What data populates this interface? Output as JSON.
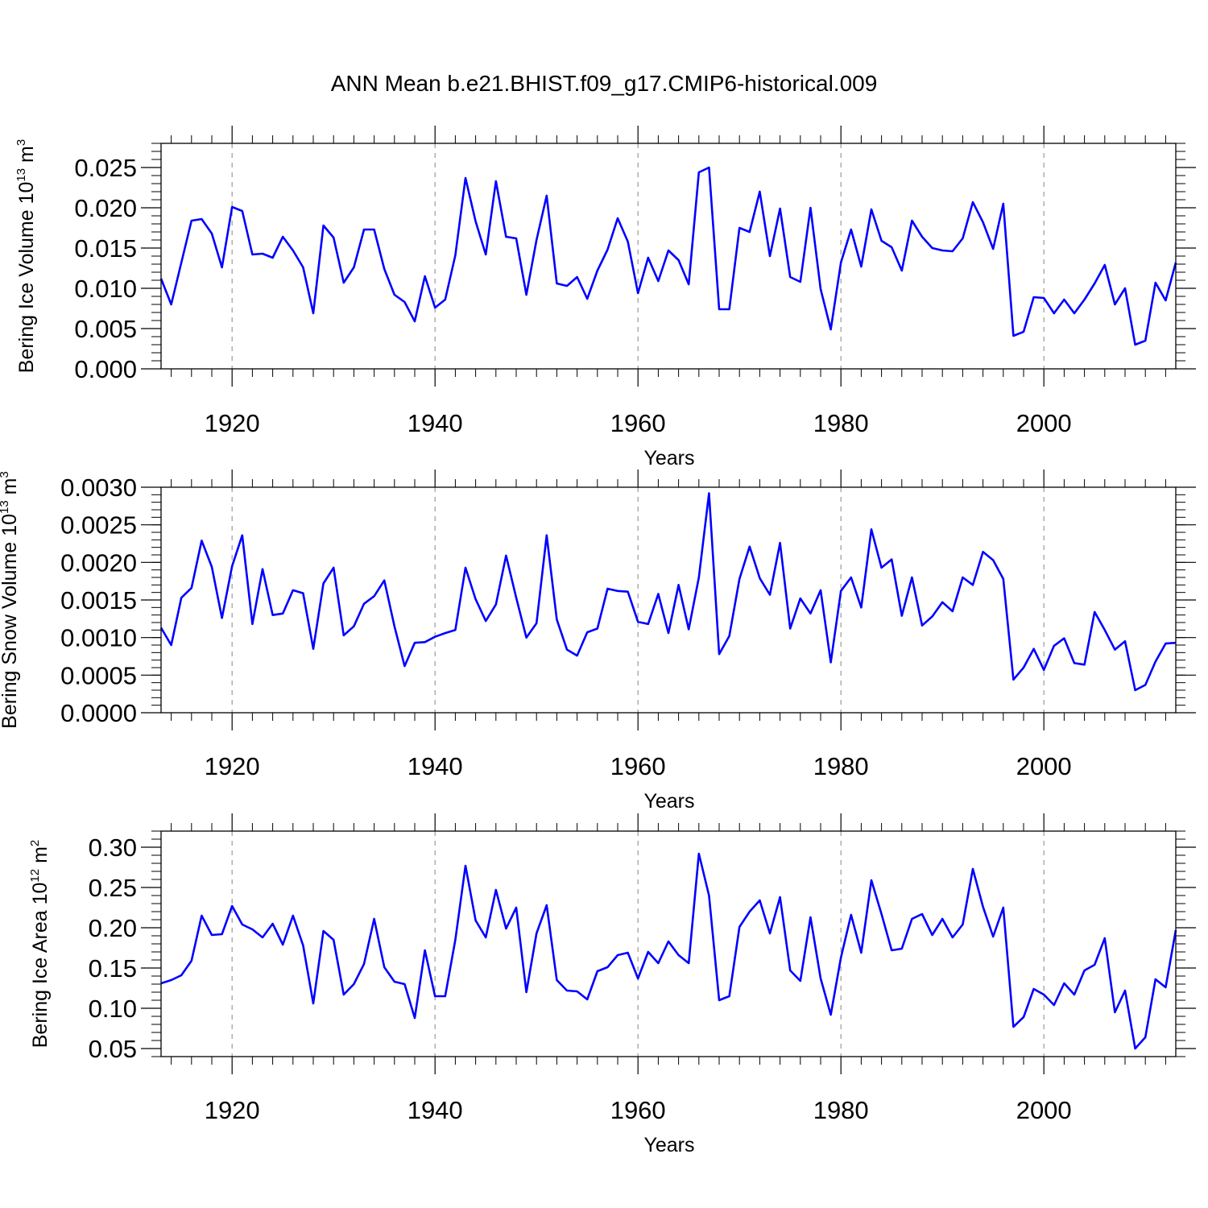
{
  "figure_title": "ANN Mean b.e21.BHIST.f09_g17.CMIP6-historical.009",
  "colors": {
    "line": "#0000ff",
    "axis": "#000000",
    "grid": "#999999",
    "background": "#ffffff"
  },
  "chart_data": [
    {
      "type": "line",
      "title": "ANN Mean b.e21.BHIST.f09_g17.CMIP6-historical.009",
      "xlabel": "Years",
      "ylabel": {
        "text": "Bering Ice Volume 10",
        "superscript": "13",
        "unit": " m",
        "unit_superscript": "3"
      },
      "xlim": [
        1913,
        2013
      ],
      "ylim": [
        0.0,
        0.028
      ],
      "x_ticks": [
        1920,
        1940,
        1960,
        1980,
        2000
      ],
      "x_tick_labels": [
        "1920",
        "1940",
        "1960",
        "1980",
        "2000"
      ],
      "y_ticks": [
        0.0,
        0.005,
        0.01,
        0.015,
        0.02,
        0.025
      ],
      "y_tick_labels": [
        "0.000",
        "0.005",
        "0.010",
        "0.015",
        "0.020",
        "0.025"
      ],
      "grid": "vertical dashed at major x ticks",
      "series": [
        {
          "name": "Bering Ice Volume",
          "x_start": 1913,
          "values": [
            0.0112,
            0.008,
            0.0132,
            0.0184,
            0.0186,
            0.0168,
            0.0126,
            0.0201,
            0.0196,
            0.0142,
            0.0143,
            0.0138,
            0.0164,
            0.0147,
            0.0126,
            0.0069,
            0.0178,
            0.0163,
            0.0107,
            0.0126,
            0.0173,
            0.0173,
            0.0124,
            0.0092,
            0.0083,
            0.0059,
            0.0115,
            0.0076,
            0.0086,
            0.0141,
            0.0237,
            0.0183,
            0.0142,
            0.0233,
            0.0164,
            0.0162,
            0.0092,
            0.016,
            0.0215,
            0.0106,
            0.0103,
            0.0114,
            0.0087,
            0.0122,
            0.0148,
            0.0187,
            0.0158,
            0.0094,
            0.0138,
            0.0109,
            0.0147,
            0.0135,
            0.0105,
            0.0244,
            0.025,
            0.0074,
            0.0074,
            0.0175,
            0.017,
            0.022,
            0.014,
            0.0199,
            0.0114,
            0.0108,
            0.02,
            0.0099,
            0.0049,
            0.0132,
            0.0173,
            0.0127,
            0.0198,
            0.0159,
            0.0151,
            0.0122,
            0.0184,
            0.0164,
            0.015,
            0.0147,
            0.0146,
            0.0162,
            0.0207,
            0.0182,
            0.0149,
            0.0205,
            0.0041,
            0.0046,
            0.0089,
            0.0088,
            0.0069,
            0.0086,
            0.0069,
            0.0086,
            0.0106,
            0.0129,
            0.008,
            0.01,
            0.003,
            0.0035,
            0.0107,
            0.0085,
            0.0132
          ]
        }
      ]
    },
    {
      "type": "line",
      "xlabel": "Years",
      "ylabel": {
        "text": "Bering Snow Volume 10",
        "superscript": "13",
        "unit": " m",
        "unit_superscript": "3"
      },
      "xlim": [
        1913,
        2013
      ],
      "ylim": [
        0.0,
        0.003
      ],
      "x_ticks": [
        1920,
        1940,
        1960,
        1980,
        2000
      ],
      "x_tick_labels": [
        "1920",
        "1940",
        "1960",
        "1980",
        "2000"
      ],
      "y_ticks": [
        0.0,
        0.0005,
        0.001,
        0.0015,
        0.002,
        0.0025,
        0.003
      ],
      "y_tick_labels": [
        "0.0000",
        "0.0005",
        "0.0010",
        "0.0015",
        "0.0020",
        "0.0025",
        "0.0030"
      ],
      "grid": "vertical dashed at major x ticks",
      "series": [
        {
          "name": "Bering Snow Volume",
          "x_start": 1913,
          "values": [
            0.00113,
            0.0009,
            0.00153,
            0.00166,
            0.00229,
            0.00194,
            0.00126,
            0.00195,
            0.00236,
            0.00118,
            0.00191,
            0.0013,
            0.00132,
            0.00163,
            0.00159,
            0.00085,
            0.00172,
            0.00193,
            0.00103,
            0.00115,
            0.00145,
            0.00155,
            0.00176,
            0.00115,
            0.00062,
            0.00093,
            0.00094,
            0.00101,
            0.00106,
            0.0011,
            0.00193,
            0.00151,
            0.00122,
            0.00144,
            0.00209,
            0.00153,
            0.001,
            0.00119,
            0.00236,
            0.00124,
            0.00084,
            0.00076,
            0.00107,
            0.00112,
            0.00165,
            0.00162,
            0.00161,
            0.00121,
            0.00118,
            0.00158,
            0.00106,
            0.0017,
            0.00111,
            0.0018,
            0.00292,
            0.00078,
            0.00102,
            0.00178,
            0.00221,
            0.00179,
            0.00157,
            0.00226,
            0.00112,
            0.00152,
            0.00132,
            0.00163,
            0.00067,
            0.00162,
            0.0018,
            0.0014,
            0.00244,
            0.00193,
            0.00204,
            0.00129,
            0.0018,
            0.00116,
            0.00128,
            0.00147,
            0.00135,
            0.0018,
            0.0017,
            0.00214,
            0.00203,
            0.00178,
            0.00044,
            0.0006,
            0.00085,
            0.00057,
            0.00089,
            0.00099,
            0.00066,
            0.00064,
            0.00134,
            0.0011,
            0.00084,
            0.00095,
            0.0003,
            0.00037,
            0.00068,
            0.00092,
            0.00093
          ]
        }
      ]
    },
    {
      "type": "line",
      "xlabel": "Years",
      "ylabel": {
        "text": "Bering Ice Area 10",
        "superscript": "12",
        "unit": " m",
        "unit_superscript": "2"
      },
      "xlim": [
        1913,
        2013
      ],
      "ylim": [
        0.04,
        0.32
      ],
      "x_ticks": [
        1920,
        1940,
        1960,
        1980,
        2000
      ],
      "x_tick_labels": [
        "1920",
        "1940",
        "1960",
        "1980",
        "2000"
      ],
      "y_ticks": [
        0.05,
        0.1,
        0.15,
        0.2,
        0.25,
        0.3
      ],
      "y_tick_labels": [
        "0.05",
        "0.10",
        "0.15",
        "0.20",
        "0.25",
        "0.30"
      ],
      "grid": "vertical dashed at major x ticks",
      "series": [
        {
          "name": "Bering Ice Area",
          "x_start": 1913,
          "values": [
            0.131,
            0.135,
            0.141,
            0.159,
            0.215,
            0.191,
            0.192,
            0.227,
            0.204,
            0.198,
            0.188,
            0.205,
            0.179,
            0.215,
            0.178,
            0.106,
            0.196,
            0.185,
            0.117,
            0.13,
            0.155,
            0.211,
            0.151,
            0.133,
            0.13,
            0.088,
            0.172,
            0.115,
            0.115,
            0.185,
            0.277,
            0.209,
            0.188,
            0.247,
            0.199,
            0.225,
            0.12,
            0.193,
            0.228,
            0.135,
            0.122,
            0.121,
            0.111,
            0.146,
            0.151,
            0.166,
            0.169,
            0.137,
            0.17,
            0.156,
            0.183,
            0.166,
            0.156,
            0.292,
            0.24,
            0.11,
            0.115,
            0.201,
            0.22,
            0.234,
            0.193,
            0.238,
            0.147,
            0.134,
            0.213,
            0.137,
            0.092,
            0.163,
            0.216,
            0.169,
            0.259,
            0.217,
            0.172,
            0.174,
            0.211,
            0.217,
            0.191,
            0.211,
            0.188,
            0.204,
            0.273,
            0.226,
            0.189,
            0.225,
            0.077,
            0.089,
            0.124,
            0.117,
            0.104,
            0.131,
            0.117,
            0.147,
            0.154,
            0.187,
            0.095,
            0.122,
            0.05,
            0.064,
            0.136,
            0.126,
            0.197
          ]
        }
      ]
    }
  ]
}
